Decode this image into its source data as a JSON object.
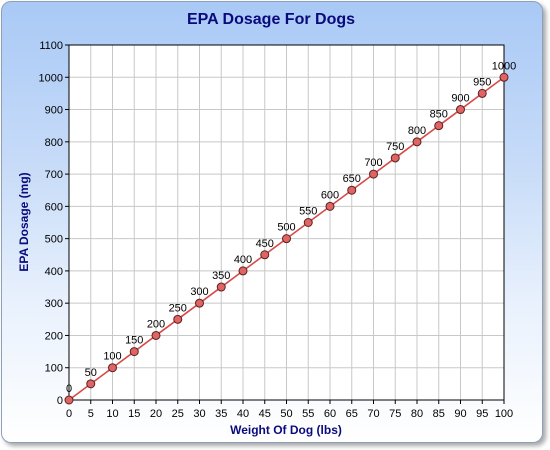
{
  "chart_data": {
    "type": "line",
    "title": "EPA Dosage For Dogs",
    "xlabel": "Weight Of Dog (lbs)",
    "ylabel": "EPA Dosage (mg)",
    "x": [
      0,
      5,
      10,
      15,
      20,
      25,
      30,
      35,
      40,
      45,
      50,
      55,
      60,
      65,
      70,
      75,
      80,
      85,
      90,
      95,
      100
    ],
    "series": [
      {
        "values": [
          0,
          50,
          100,
          150,
          200,
          250,
          300,
          350,
          400,
          450,
          500,
          550,
          600,
          650,
          700,
          750,
          800,
          850,
          900,
          950,
          1000
        ],
        "color": "#d84a4a"
      }
    ],
    "xlim": [
      0,
      100
    ],
    "ylim": [
      0,
      1100
    ],
    "xticks": [
      "0",
      "5",
      "10",
      "15",
      "20",
      "25",
      "30",
      "35",
      "40",
      "45",
      "50",
      "55",
      "60",
      "65",
      "70",
      "75",
      "80",
      "85",
      "90",
      "95",
      "100"
    ],
    "yticks": [
      "0",
      "100",
      "200",
      "300",
      "400",
      "500",
      "600",
      "700",
      "800",
      "900",
      "1000",
      "1100"
    ],
    "grid": true,
    "data_labels": true,
    "marker_fill": "#e06464",
    "marker_stroke": "#5a2020",
    "title_color": "#0a0a7c"
  }
}
